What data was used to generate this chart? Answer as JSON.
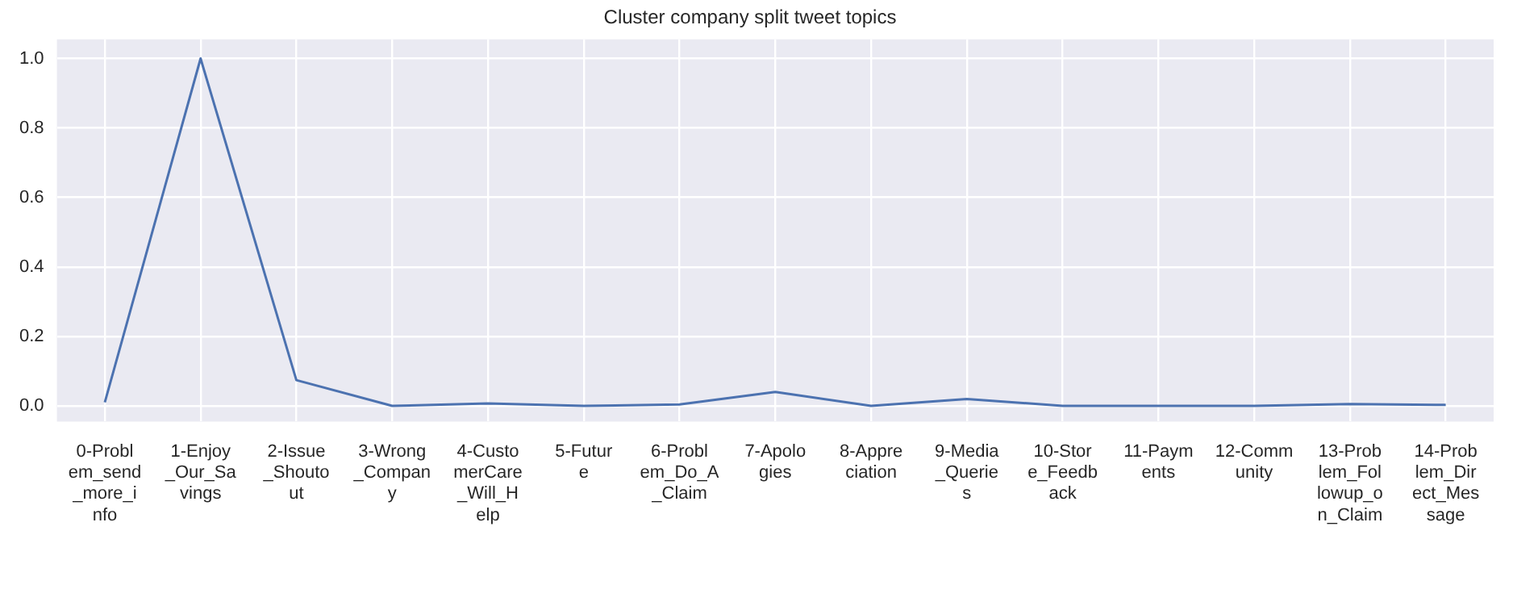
{
  "chart_data": {
    "type": "line",
    "title": "Cluster company split tweet topics",
    "categories": [
      "0-Problem_send_more_info",
      "1-Enjoy_Our_Savings",
      "2-Issue_Shoutout",
      "3-Wrong_Company",
      "4-CustomerCare_Will_Help",
      "5-Future",
      "6-Problem_Do_A_Claim",
      "7-Apologies",
      "8-Appreciation",
      "9-Media_Queries",
      "10-Store_Feedback",
      "11-Payments",
      "12-Community",
      "13-Problem_Followup_on_Claim",
      "14-Problem_Direct_Message"
    ],
    "series": [
      {
        "color": "#4c72b0",
        "values": [
          0.01,
          1.0,
          0.074,
          0.0,
          0.007,
          0.0,
          0.004,
          0.04,
          0.0,
          0.02,
          0.0,
          0.0,
          0.0,
          0.005,
          0.003
        ]
      }
    ],
    "ylim": [
      -0.045,
      1.055
    ],
    "yticks": [
      {
        "value": 0,
        "label": "0.0"
      },
      {
        "value": 0.2,
        "label": "0.2"
      },
      {
        "value": 0.4,
        "label": "0.4"
      },
      {
        "value": 0.6,
        "label": "0.6"
      },
      {
        "value": 0.8,
        "label": "0.8"
      },
      {
        "value": 1,
        "label": "1.0"
      }
    ],
    "grid": true,
    "marker": "none",
    "line_style": "solid"
  }
}
